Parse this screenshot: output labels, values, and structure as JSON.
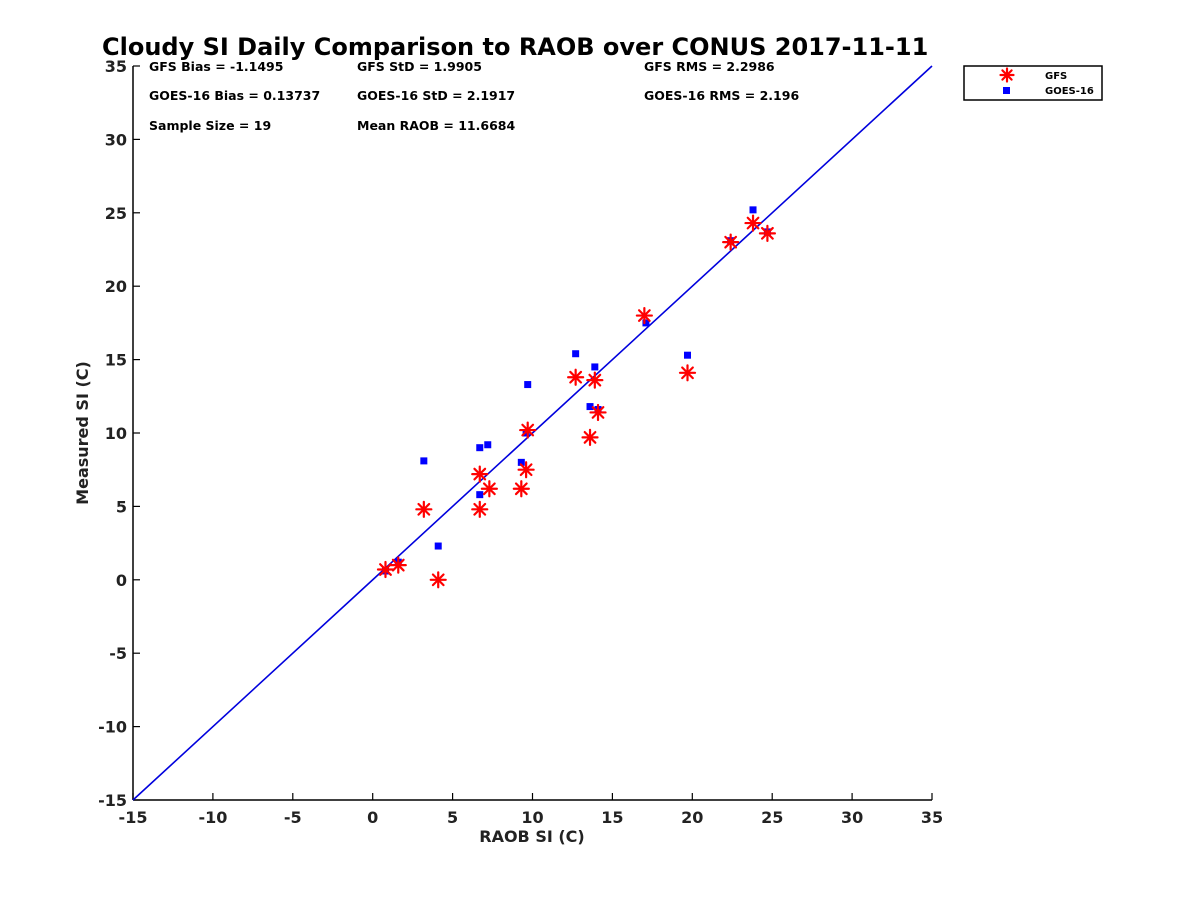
{
  "chart_data": {
    "type": "scatter",
    "title": "Cloudy SI Daily Comparison to RAOB over CONUS 2017-11-11",
    "xlabel": "RAOB SI (C)",
    "ylabel": "Measured SI (C)",
    "xlim": [
      -15,
      35
    ],
    "ylim": [
      -15,
      35
    ],
    "xticks": [
      "-15",
      "-10",
      "-5",
      "0",
      "5",
      "10",
      "15",
      "20",
      "25",
      "30",
      "35"
    ],
    "yticks": [
      "-15",
      "-10",
      "-5",
      "0",
      "5",
      "10",
      "15",
      "20",
      "25",
      "30",
      "35"
    ],
    "grid": false,
    "legend_position": "outside-top-right",
    "reference_line": {
      "from": [
        -15,
        -15
      ],
      "to": [
        35,
        35
      ],
      "color": "#0000dd"
    },
    "series": [
      {
        "name": "GFS",
        "marker": "asterisk",
        "color": "#ff0000",
        "points": [
          [
            0.8,
            0.7
          ],
          [
            1.6,
            1.0
          ],
          [
            3.2,
            4.8
          ],
          [
            4.1,
            0.0
          ],
          [
            6.7,
            7.2
          ],
          [
            6.7,
            4.8
          ],
          [
            7.3,
            6.2
          ],
          [
            9.3,
            6.2
          ],
          [
            9.6,
            7.5
          ],
          [
            9.7,
            10.2
          ],
          [
            12.7,
            13.8
          ],
          [
            13.6,
            9.7
          ],
          [
            13.9,
            13.6
          ],
          [
            14.1,
            11.4
          ],
          [
            17.0,
            18.0
          ],
          [
            19.7,
            14.1
          ],
          [
            22.4,
            23.0
          ],
          [
            23.8,
            24.3
          ],
          [
            24.7,
            23.6
          ]
        ]
      },
      {
        "name": "GOES-16",
        "marker": "square",
        "color": "#0000ff",
        "points": [
          [
            0.8,
            0.6
          ],
          [
            1.6,
            1.2
          ],
          [
            3.2,
            8.1
          ],
          [
            4.1,
            2.3
          ],
          [
            6.7,
            9.0
          ],
          [
            6.7,
            5.8
          ],
          [
            7.2,
            9.2
          ],
          [
            9.3,
            8.0
          ],
          [
            9.6,
            10.0
          ],
          [
            9.7,
            13.3
          ],
          [
            12.7,
            15.4
          ],
          [
            13.6,
            11.8
          ],
          [
            13.9,
            14.5
          ],
          [
            14.1,
            11.6
          ],
          [
            17.1,
            17.5
          ],
          [
            19.7,
            15.3
          ],
          [
            22.4,
            23.1
          ],
          [
            23.8,
            25.2
          ],
          [
            24.7,
            23.7
          ]
        ]
      }
    ]
  },
  "stats": {
    "gfs_bias": "GFS Bias = -1.1495",
    "gfs_std": "GFS StD = 1.9905",
    "gfs_rms": "GFS RMS = 2.2986",
    "goes_bias": "GOES-16 Bias = 0.13737",
    "goes_std": "GOES-16 StD = 2.1917",
    "goes_rms": "GOES-16 RMS = 2.196",
    "sample_size": "Sample Size = 19",
    "mean_raob": "Mean RAOB = 11.6684"
  },
  "legend": {
    "items": [
      {
        "label": "GFS",
        "marker": "asterisk",
        "color": "#ff0000"
      },
      {
        "label": "GOES-16",
        "marker": "square",
        "color": "#0000ff"
      }
    ]
  }
}
